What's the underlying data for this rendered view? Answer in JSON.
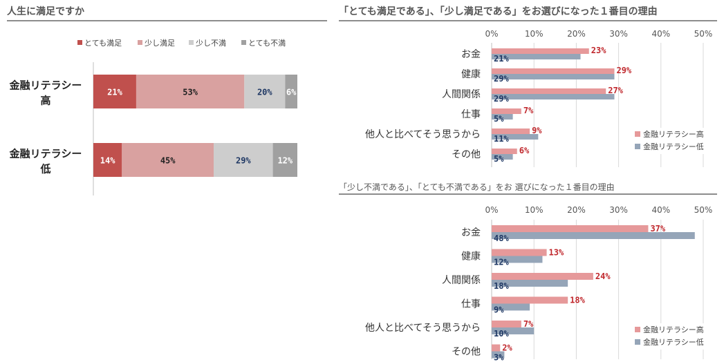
{
  "colors": {
    "very_satisfied": "#c0504d",
    "somewhat_satisfied": "#d9a1a0",
    "somewhat_dissatisfied": "#cdcdcd",
    "very_dissatisfied": "#a0a0a0",
    "high": "#e6999a",
    "low": "#95a5b8",
    "label_red": "#c0282d",
    "label_navy": "#1f3864"
  },
  "left_panel": {
    "title": "人生に満足ですか",
    "chart_data": {
      "type": "bar",
      "orientation": "horizontal-stacked-100",
      "categories": [
        "金融リテラシー\n高",
        "金融リテラシー\n低"
      ],
      "category_lines": [
        [
          "金融リテラシー",
          "高"
        ],
        [
          "金融リテラシー",
          "低"
        ]
      ],
      "series": [
        {
          "name": "とても満足",
          "values": [
            21,
            14
          ],
          "labels": [
            "21%",
            "14%"
          ],
          "color": "#c0504d",
          "label_color": "#ffffff"
        },
        {
          "name": "少し満足",
          "values": [
            53,
            45
          ],
          "labels": [
            "53%",
            "45%"
          ],
          "color": "#d9a1a0",
          "label_color": "#222222"
        },
        {
          "name": "少し不満",
          "values": [
            20,
            29
          ],
          "labels": [
            "20%",
            "29%"
          ],
          "color": "#cdcdcd",
          "label_color": "#1f3864"
        },
        {
          "name": "とても不満",
          "values": [
            6,
            12
          ],
          "labels": [
            "6%",
            "12%"
          ],
          "color": "#a0a0a0",
          "label_color": "#ffffff"
        }
      ],
      "legend": "top"
    }
  },
  "right_top": {
    "title": "「とても満足である」、「少し満足である」をお選びになった１番目の理由",
    "chart_data": {
      "type": "bar",
      "orientation": "horizontal-grouped",
      "categories": [
        "お金",
        "健康",
        "人間関係",
        "仕事",
        "他人と比べてそう思うから",
        "その他"
      ],
      "series": [
        {
          "name": "金融リテラシー高",
          "values": [
            23,
            29,
            27,
            7,
            9,
            6
          ],
          "labels": [
            "23%",
            "29%",
            "27%",
            "7%",
            "9%",
            "6%"
          ]
        },
        {
          "name": "金融リテラシー低",
          "values": [
            21,
            29,
            29,
            5,
            11,
            5
          ],
          "labels": [
            "21%",
            "29%",
            "29%",
            "5%",
            "11%",
            "5%"
          ]
        }
      ],
      "xlim": [
        0,
        50
      ],
      "ticks": [
        "0%",
        "10%",
        "20%",
        "30%",
        "40%",
        "50%"
      ],
      "grid": true,
      "legend": "bottom-right"
    }
  },
  "right_bottom": {
    "title": "「少し不満である」、「とても不満である」をお 選びになった１番目の理由",
    "chart_data": {
      "type": "bar",
      "orientation": "horizontal-grouped",
      "categories": [
        "お金",
        "健康",
        "人間関係",
        "仕事",
        "他人と比べてそう思うから",
        "その他"
      ],
      "series": [
        {
          "name": "金融リテラシー高",
          "values": [
            37,
            13,
            24,
            18,
            7,
            2
          ],
          "labels": [
            "37%",
            "13%",
            "24%",
            "18%",
            "7%",
            "2%"
          ]
        },
        {
          "name": "金融リテラシー低",
          "values": [
            48,
            12,
            18,
            9,
            10,
            3
          ],
          "labels": [
            "48%",
            "12%",
            "18%",
            "9%",
            "10%",
            "3%"
          ]
        }
      ],
      "xlim": [
        0,
        50
      ],
      "ticks": [
        "0%",
        "10%",
        "20%",
        "30%",
        "40%",
        "50%"
      ],
      "grid": true,
      "legend": "bottom-right"
    }
  }
}
